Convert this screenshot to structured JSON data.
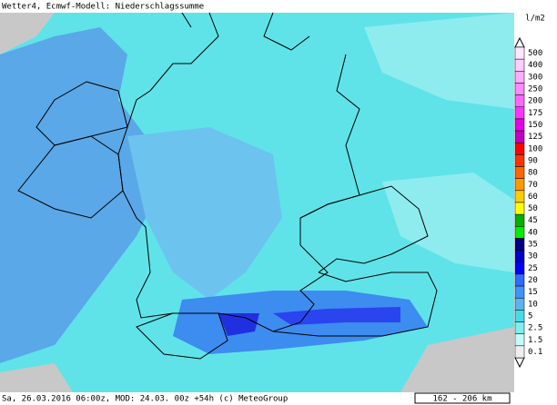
{
  "header": {
    "title": "Wetter4, Ecmwf-Modell: Niederschlagssumme"
  },
  "legend": {
    "unit": "l/m2",
    "items": [
      {
        "label": "500",
        "color": "#ffe6ff"
      },
      {
        "label": "400",
        "color": "#ffccff"
      },
      {
        "label": "300",
        "color": "#ffaaff"
      },
      {
        "label": "250",
        "color": "#ff88ff"
      },
      {
        "label": "200",
        "color": "#ff66ff"
      },
      {
        "label": "175",
        "color": "#ff33ff"
      },
      {
        "label": "150",
        "color": "#e600e6"
      },
      {
        "label": "125",
        "color": "#c000c0"
      },
      {
        "label": "100",
        "color": "#ff0000"
      },
      {
        "label": "90",
        "color": "#ff3300"
      },
      {
        "label": "80",
        "color": "#ff6600"
      },
      {
        "label": "70",
        "color": "#ff9900"
      },
      {
        "label": "60",
        "color": "#ffcc00"
      },
      {
        "label": "50",
        "color": "#ffff00"
      },
      {
        "label": "45",
        "color": "#00b000"
      },
      {
        "label": "40",
        "color": "#00ee00"
      },
      {
        "label": "35",
        "color": "#000080"
      },
      {
        "label": "30",
        "color": "#0000c8"
      },
      {
        "label": "25",
        "color": "#0000ff"
      },
      {
        "label": "20",
        "color": "#2e6cff"
      },
      {
        "label": "15",
        "color": "#3d94ff"
      },
      {
        "label": "10",
        "color": "#5ab4f0"
      },
      {
        "label": "5",
        "color": "#46dce6"
      },
      {
        "label": "2.5",
        "color": "#80eef0"
      },
      {
        "label": "1.5",
        "color": "#c4fafa"
      },
      {
        "label": "0.1",
        "color": "#eeeeee"
      }
    ]
  },
  "footer": {
    "text": "Sa, 26.03.2016 06:00z, MOD: 24.03. 00z +54h (c) MeteoGroup",
    "scale": "162 - 206 km"
  }
}
